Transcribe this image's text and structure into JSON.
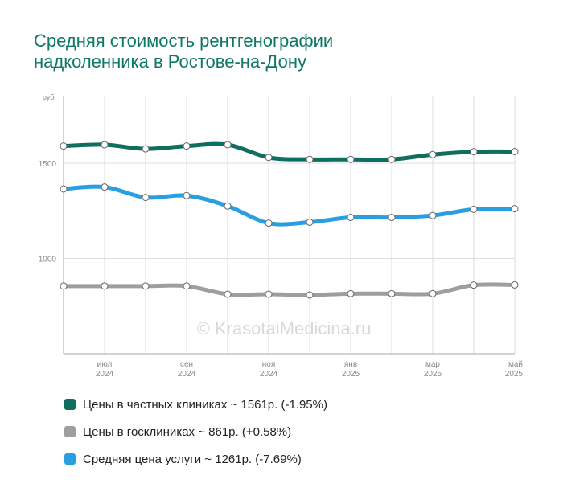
{
  "title_lines": [
    "Средняя стоимость рентгенографии",
    "надколенника в Ростове-на-Дону"
  ],
  "watermark": "© KrasotaiMedicina.ru",
  "colors": {
    "private": "#0f6e5e",
    "public": "#9e9e9e",
    "average": "#2a9fe0",
    "title": "#0f7766"
  },
  "chart_data": {
    "type": "line",
    "ylabel": "руб.",
    "ylim": [
      500,
      1850
    ],
    "yticks": [
      1000,
      1500
    ],
    "xlim": [
      0,
      11
    ],
    "x_ticks": [
      {
        "x": 1,
        "month": "июл",
        "year": "2024"
      },
      {
        "x": 3,
        "month": "сен",
        "year": "2024"
      },
      {
        "x": 5,
        "month": "ноя",
        "year": "2024"
      },
      {
        "x": 7,
        "month": "янв",
        "year": "2025"
      },
      {
        "x": 9,
        "month": "мар",
        "year": "2025"
      },
      {
        "x": 11,
        "month": "май",
        "year": "2025"
      }
    ],
    "x": [
      0,
      1,
      2,
      3,
      4,
      5,
      6,
      7,
      8,
      9,
      10,
      11
    ],
    "series": [
      {
        "key": "private",
        "values": [
          1590,
          1597,
          1575,
          1590,
          1597,
          1530,
          1520,
          1520,
          1520,
          1545,
          1560,
          1561
        ]
      },
      {
        "key": "average",
        "values": [
          1365,
          1375,
          1320,
          1330,
          1275,
          1185,
          1190,
          1215,
          1215,
          1225,
          1258,
          1261
        ]
      },
      {
        "key": "public",
        "values": [
          855,
          855,
          855,
          855,
          812,
          812,
          808,
          815,
          815,
          815,
          860,
          861
        ]
      }
    ]
  },
  "legend": [
    {
      "key": "private",
      "label": "Цены в частных клиниках ~ 1561р. (-1.95%)"
    },
    {
      "key": "public",
      "label": "Цены в госклиниках ~ 861р. (+0.58%)"
    },
    {
      "key": "average",
      "label": "Средняя цена услуги ~ 1261р. (-7.69%)"
    }
  ]
}
